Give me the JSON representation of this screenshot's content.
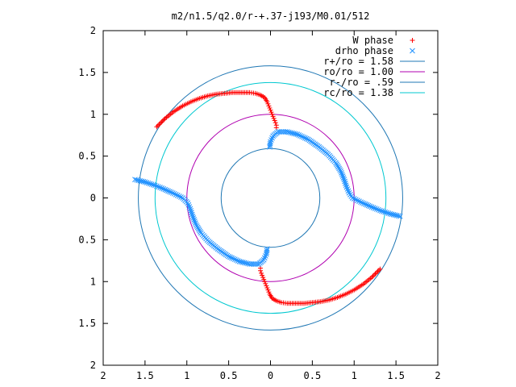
{
  "chart_data": {
    "type": "scatter",
    "title": "m2/n1.5/q2.0/r-+.37-j193/M0.01/512",
    "xlabel": "",
    "ylabel": "",
    "xlim": [
      -2,
      2
    ],
    "ylim": [
      -2,
      2
    ],
    "grid": false,
    "legend_position": "top-right",
    "x_ticks": [
      -2,
      -1.5,
      -1,
      -0.5,
      0,
      0.5,
      1,
      1.5,
      2
    ],
    "y_ticks": [
      -2,
      -1.5,
      -1,
      -0.5,
      0,
      0.5,
      1,
      1.5,
      2
    ],
    "x_tick_labels": [
      "2",
      "1.5",
      "1",
      "0.5",
      "0",
      "0.5",
      "1",
      "1.5",
      "2"
    ],
    "y_tick_labels": [
      "2",
      "1.5",
      "1",
      "0.5",
      "0",
      "0.5",
      "1",
      "1.5",
      "2"
    ],
    "series": [
      {
        "name": "W phase",
        "marker": "plus",
        "color": "#ff0000",
        "points": [
          [
            -1.36,
            0.85
          ],
          [
            -1.26,
            0.95
          ],
          [
            -1.16,
            1.03
          ],
          [
            -1.05,
            1.1
          ],
          [
            -0.95,
            1.15
          ],
          [
            -0.85,
            1.19
          ],
          [
            -0.75,
            1.22
          ],
          [
            -0.65,
            1.24
          ],
          [
            -0.55,
            1.25
          ],
          [
            -0.45,
            1.26
          ],
          [
            -0.35,
            1.26
          ],
          [
            -0.25,
            1.26
          ],
          [
            -0.18,
            1.25
          ],
          [
            -0.12,
            1.23
          ],
          [
            -0.07,
            1.2
          ],
          [
            -0.04,
            1.15
          ],
          [
            -0.02,
            1.1
          ],
          [
            0.0,
            1.05
          ],
          [
            0.02,
            1.0
          ],
          [
            0.04,
            0.95
          ],
          [
            0.06,
            0.9
          ],
          [
            0.07,
            0.87
          ],
          [
            0.07,
            0.84
          ],
          [
            1.31,
            -0.85
          ],
          [
            1.21,
            -0.95
          ],
          [
            1.11,
            -1.03
          ],
          [
            1.0,
            -1.1
          ],
          [
            0.9,
            -1.15
          ],
          [
            0.8,
            -1.19
          ],
          [
            0.7,
            -1.22
          ],
          [
            0.6,
            -1.24
          ],
          [
            0.5,
            -1.25
          ],
          [
            0.4,
            -1.26
          ],
          [
            0.3,
            -1.26
          ],
          [
            0.2,
            -1.26
          ],
          [
            0.13,
            -1.25
          ],
          [
            0.07,
            -1.23
          ],
          [
            0.02,
            -1.2
          ],
          [
            -0.01,
            -1.15
          ],
          [
            -0.03,
            -1.1
          ],
          [
            -0.05,
            -1.05
          ],
          [
            -0.07,
            -1.0
          ],
          [
            -0.09,
            -0.95
          ],
          [
            -0.11,
            -0.9
          ],
          [
            -0.12,
            -0.87
          ],
          [
            -0.12,
            -0.84
          ]
        ]
      },
      {
        "name": "drho phase",
        "marker": "cross",
        "color": "#1e90ff",
        "points": [
          [
            -1.62,
            0.22
          ],
          [
            -1.5,
            0.19
          ],
          [
            -1.38,
            0.15
          ],
          [
            -1.26,
            0.1
          ],
          [
            -1.15,
            0.05
          ],
          [
            -1.05,
            0.0
          ],
          [
            -0.99,
            -0.06
          ],
          [
            -0.96,
            -0.13
          ],
          [
            -0.93,
            -0.22
          ],
          [
            -0.89,
            -0.32
          ],
          [
            -0.83,
            -0.42
          ],
          [
            -0.74,
            -0.52
          ],
          [
            -0.63,
            -0.61
          ],
          [
            -0.5,
            -0.7
          ],
          [
            -0.37,
            -0.76
          ],
          [
            -0.25,
            -0.79
          ],
          [
            -0.14,
            -0.79
          ],
          [
            -0.08,
            -0.74
          ],
          [
            -0.05,
            -0.67
          ],
          [
            -0.04,
            -0.61
          ],
          [
            1.55,
            -0.22
          ],
          [
            1.43,
            -0.19
          ],
          [
            1.31,
            -0.15
          ],
          [
            1.19,
            -0.1
          ],
          [
            1.08,
            -0.05
          ],
          [
            0.98,
            0.0
          ],
          [
            0.94,
            0.06
          ],
          [
            0.91,
            0.13
          ],
          [
            0.88,
            0.22
          ],
          [
            0.84,
            0.32
          ],
          [
            0.78,
            0.42
          ],
          [
            0.69,
            0.52
          ],
          [
            0.58,
            0.61
          ],
          [
            0.45,
            0.7
          ],
          [
            0.32,
            0.76
          ],
          [
            0.2,
            0.79
          ],
          [
            0.09,
            0.79
          ],
          [
            0.03,
            0.74
          ],
          [
            0.0,
            0.67
          ],
          [
            -0.01,
            0.61
          ]
        ]
      },
      {
        "name": "r+/ro = 1.58",
        "type": "circle",
        "radius": 1.58,
        "color": "#1f77b4"
      },
      {
        "name": "ro/ro = 1.00",
        "type": "circle",
        "radius": 1.0,
        "color": "#b000b0"
      },
      {
        "name": "r-/ro = .59",
        "type": "circle",
        "radius": 0.59,
        "color": "#1f77b4"
      },
      {
        "name": "rc/ro = 1.38",
        "type": "circle",
        "radius": 1.38,
        "color": "#00c8d0"
      }
    ]
  }
}
